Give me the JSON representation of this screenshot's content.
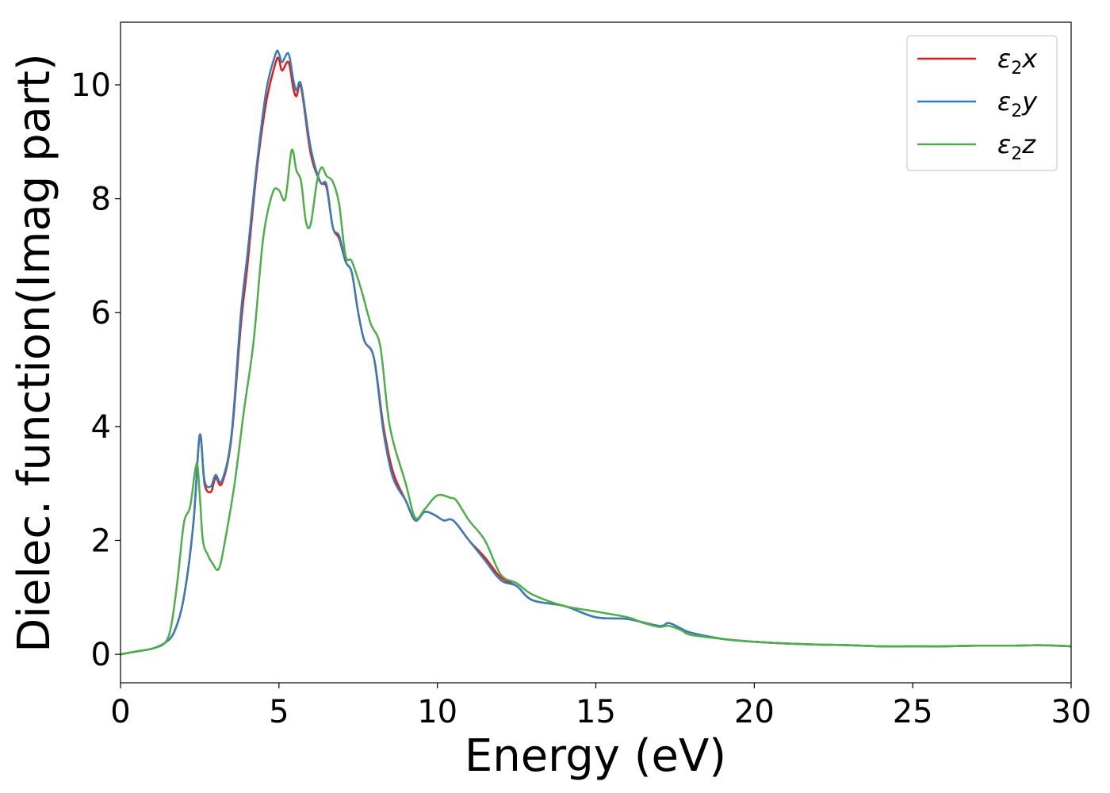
{
  "chart_data": {
    "type": "line",
    "title": "",
    "xlabel": "Energy (eV)",
    "ylabel": "Dielec. function(Imag part)",
    "xlim": [
      0,
      30
    ],
    "ylim": [
      -0.5,
      11.1
    ],
    "xticks": [
      0,
      5,
      10,
      15,
      20,
      25,
      30
    ],
    "xtick_labels": [
      "0",
      "5",
      "10",
      "15",
      "20",
      "25",
      "30"
    ],
    "yticks": [
      0,
      2,
      4,
      6,
      8,
      10
    ],
    "ytick_labels": [
      "0",
      "2",
      "4",
      "6",
      "8",
      "10"
    ],
    "grid": false,
    "legend_position": "top-right",
    "series": [
      {
        "name": "ε2x",
        "legend_base": "ε",
        "legend_sub": "2",
        "legend_suffix": "x",
        "color": "#e41a1c",
        "x": [
          0,
          0.5,
          1.0,
          1.4,
          1.7,
          2.0,
          2.3,
          2.5,
          2.65,
          2.85,
          3.0,
          3.2,
          3.5,
          3.8,
          4.0,
          4.3,
          4.6,
          4.9,
          5.0,
          5.1,
          5.3,
          5.45,
          5.55,
          5.7,
          6.0,
          6.3,
          6.5,
          6.7,
          6.9,
          7.1,
          7.3,
          7.5,
          7.7,
          8.0,
          8.3,
          8.6,
          9.0,
          9.3,
          9.6,
          9.9,
          10.2,
          10.5,
          11.0,
          11.5,
          12.0,
          12.5,
          13.0,
          14.0,
          15.0,
          16.0,
          17.0,
          17.3,
          17.7,
          18.0,
          19.0,
          20.0,
          21.0,
          22.0,
          23.0,
          24.0,
          25.0,
          26.0,
          27.0,
          28.0,
          29.0,
          30.0
        ],
        "y": [
          0.0,
          0.05,
          0.1,
          0.2,
          0.4,
          1.0,
          2.3,
          3.85,
          3.0,
          2.85,
          3.1,
          3.0,
          3.8,
          5.8,
          6.8,
          8.5,
          9.7,
          10.4,
          10.45,
          10.25,
          10.4,
          9.95,
          9.8,
          9.95,
          8.8,
          8.3,
          8.2,
          7.5,
          7.3,
          6.9,
          6.7,
          6.0,
          5.5,
          5.2,
          4.0,
          3.2,
          2.7,
          2.35,
          2.5,
          2.45,
          2.35,
          2.35,
          2.0,
          1.7,
          1.35,
          1.2,
          0.95,
          0.85,
          0.65,
          0.62,
          0.5,
          0.55,
          0.45,
          0.38,
          0.27,
          0.22,
          0.19,
          0.17,
          0.16,
          0.14,
          0.14,
          0.14,
          0.15,
          0.15,
          0.16,
          0.14
        ]
      },
      {
        "name": "ε2y",
        "legend_base": "ε",
        "legend_sub": "2",
        "legend_suffix": "y",
        "color": "#377eb8",
        "x": [
          0,
          0.5,
          1.0,
          1.4,
          1.7,
          2.0,
          2.3,
          2.5,
          2.65,
          2.85,
          3.0,
          3.2,
          3.5,
          3.8,
          4.0,
          4.3,
          4.6,
          4.9,
          5.0,
          5.1,
          5.3,
          5.45,
          5.55,
          5.7,
          6.0,
          6.3,
          6.5,
          6.7,
          6.9,
          7.1,
          7.3,
          7.5,
          7.7,
          8.0,
          8.3,
          8.6,
          9.0,
          9.3,
          9.6,
          9.9,
          10.2,
          10.5,
          11.0,
          11.5,
          12.0,
          12.5,
          13.0,
          14.0,
          15.0,
          16.0,
          17.0,
          17.3,
          17.7,
          18.0,
          19.0,
          20.0,
          21.0,
          22.0,
          23.0,
          24.0,
          25.0,
          26.0,
          27.0,
          28.0,
          29.0,
          30.0
        ],
        "y": [
          0.0,
          0.05,
          0.1,
          0.2,
          0.4,
          1.0,
          2.3,
          3.85,
          3.05,
          2.95,
          3.15,
          3.05,
          3.85,
          6.0,
          7.0,
          8.6,
          9.9,
          10.55,
          10.55,
          10.4,
          10.55,
          10.1,
          9.9,
          10.0,
          8.9,
          8.3,
          8.25,
          7.5,
          7.35,
          6.9,
          6.7,
          6.0,
          5.5,
          5.2,
          3.9,
          3.1,
          2.7,
          2.35,
          2.5,
          2.45,
          2.35,
          2.35,
          2.0,
          1.65,
          1.3,
          1.2,
          0.95,
          0.85,
          0.65,
          0.62,
          0.5,
          0.55,
          0.45,
          0.38,
          0.27,
          0.22,
          0.19,
          0.17,
          0.16,
          0.14,
          0.14,
          0.14,
          0.15,
          0.15,
          0.16,
          0.14
        ]
      },
      {
        "name": "ε2z",
        "legend_base": "ε",
        "legend_sub": "2",
        "legend_suffix": "z",
        "color": "#4daf4a",
        "x": [
          0,
          0.5,
          1.0,
          1.4,
          1.6,
          1.8,
          2.0,
          2.2,
          2.4,
          2.5,
          2.6,
          2.75,
          2.9,
          3.1,
          3.3,
          3.6,
          3.9,
          4.2,
          4.5,
          4.8,
          5.0,
          5.2,
          5.4,
          5.55,
          5.7,
          5.85,
          6.0,
          6.2,
          6.35,
          6.5,
          6.7,
          6.9,
          7.1,
          7.3,
          7.6,
          7.9,
          8.2,
          8.5,
          9.0,
          9.3,
          9.6,
          9.9,
          10.1,
          10.4,
          10.6,
          11.0,
          11.5,
          12.0,
          12.5,
          13.0,
          14.0,
          15.0,
          16.0,
          16.5,
          17.0,
          17.3,
          17.7,
          18.0,
          19.0,
          20.0,
          21.0,
          22.0,
          23.0,
          24.0,
          25.0,
          26.0,
          27.0,
          28.0,
          29.0,
          30.0
        ],
        "y": [
          0.0,
          0.05,
          0.1,
          0.2,
          0.5,
          1.3,
          2.3,
          2.6,
          3.35,
          2.8,
          2.0,
          1.75,
          1.6,
          1.5,
          2.0,
          3.0,
          4.3,
          5.5,
          7.3,
          8.1,
          8.15,
          8.0,
          8.85,
          8.5,
          8.3,
          7.6,
          7.55,
          8.3,
          8.55,
          8.4,
          8.3,
          7.9,
          7.0,
          6.9,
          6.4,
          5.8,
          5.4,
          4.0,
          3.0,
          2.4,
          2.55,
          2.75,
          2.8,
          2.75,
          2.7,
          2.35,
          2.0,
          1.4,
          1.25,
          1.05,
          0.85,
          0.75,
          0.65,
          0.55,
          0.48,
          0.5,
          0.42,
          0.34,
          0.27,
          0.22,
          0.19,
          0.17,
          0.16,
          0.14,
          0.14,
          0.14,
          0.15,
          0.15,
          0.16,
          0.14
        ]
      }
    ]
  }
}
